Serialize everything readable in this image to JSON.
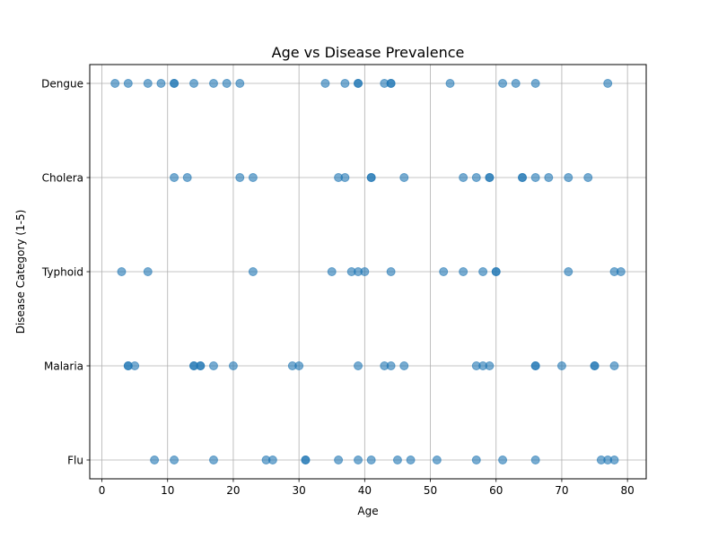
{
  "chart_data": {
    "type": "scatter",
    "title": "Age vs Disease Prevalence",
    "xlabel": "Age",
    "ylabel": "Disease Category (1-5)",
    "xlim": [
      -1.85,
      82.85
    ],
    "ylim": [
      0.8,
      5.2
    ],
    "xticks": [
      0,
      10,
      20,
      30,
      40,
      50,
      60,
      70,
      80
    ],
    "yticks": [
      1,
      2,
      3,
      4,
      5
    ],
    "ytick_labels": [
      "Flu",
      "Malaria",
      "Typhoid",
      "Cholera",
      "Dengue"
    ],
    "grid": true,
    "point_color": "#1f77b4",
    "point_opacity": 0.6,
    "points": [
      {
        "x": 2,
        "y": 5
      },
      {
        "x": 4,
        "y": 5
      },
      {
        "x": 7,
        "y": 5
      },
      {
        "x": 9,
        "y": 5
      },
      {
        "x": 11,
        "y": 5
      },
      {
        "x": 11,
        "y": 5
      },
      {
        "x": 14,
        "y": 5
      },
      {
        "x": 17,
        "y": 5
      },
      {
        "x": 19,
        "y": 5
      },
      {
        "x": 21,
        "y": 5
      },
      {
        "x": 34,
        "y": 5
      },
      {
        "x": 37,
        "y": 5
      },
      {
        "x": 39,
        "y": 5
      },
      {
        "x": 39,
        "y": 5
      },
      {
        "x": 43,
        "y": 5
      },
      {
        "x": 44,
        "y": 5
      },
      {
        "x": 44,
        "y": 5
      },
      {
        "x": 53,
        "y": 5
      },
      {
        "x": 61,
        "y": 5
      },
      {
        "x": 63,
        "y": 5
      },
      {
        "x": 66,
        "y": 5
      },
      {
        "x": 77,
        "y": 5
      },
      {
        "x": 11,
        "y": 4
      },
      {
        "x": 13,
        "y": 4
      },
      {
        "x": 21,
        "y": 4
      },
      {
        "x": 23,
        "y": 4
      },
      {
        "x": 36,
        "y": 4
      },
      {
        "x": 37,
        "y": 4
      },
      {
        "x": 41,
        "y": 4
      },
      {
        "x": 41,
        "y": 4
      },
      {
        "x": 46,
        "y": 4
      },
      {
        "x": 55,
        "y": 4
      },
      {
        "x": 57,
        "y": 4
      },
      {
        "x": 59,
        "y": 4
      },
      {
        "x": 59,
        "y": 4
      },
      {
        "x": 64,
        "y": 4
      },
      {
        "x": 64,
        "y": 4
      },
      {
        "x": 66,
        "y": 4
      },
      {
        "x": 68,
        "y": 4
      },
      {
        "x": 71,
        "y": 4
      },
      {
        "x": 74,
        "y": 4
      },
      {
        "x": 3,
        "y": 3
      },
      {
        "x": 7,
        "y": 3
      },
      {
        "x": 23,
        "y": 3
      },
      {
        "x": 35,
        "y": 3
      },
      {
        "x": 38,
        "y": 3
      },
      {
        "x": 39,
        "y": 3
      },
      {
        "x": 40,
        "y": 3
      },
      {
        "x": 44,
        "y": 3
      },
      {
        "x": 52,
        "y": 3
      },
      {
        "x": 55,
        "y": 3
      },
      {
        "x": 58,
        "y": 3
      },
      {
        "x": 60,
        "y": 3
      },
      {
        "x": 60,
        "y": 3
      },
      {
        "x": 71,
        "y": 3
      },
      {
        "x": 78,
        "y": 3
      },
      {
        "x": 79,
        "y": 3
      },
      {
        "x": 4,
        "y": 2
      },
      {
        "x": 4,
        "y": 2
      },
      {
        "x": 5,
        "y": 2
      },
      {
        "x": 14,
        "y": 2
      },
      {
        "x": 14,
        "y": 2
      },
      {
        "x": 15,
        "y": 2
      },
      {
        "x": 15,
        "y": 2
      },
      {
        "x": 17,
        "y": 2
      },
      {
        "x": 20,
        "y": 2
      },
      {
        "x": 29,
        "y": 2
      },
      {
        "x": 30,
        "y": 2
      },
      {
        "x": 39,
        "y": 2
      },
      {
        "x": 43,
        "y": 2
      },
      {
        "x": 44,
        "y": 2
      },
      {
        "x": 46,
        "y": 2
      },
      {
        "x": 57,
        "y": 2
      },
      {
        "x": 58,
        "y": 2
      },
      {
        "x": 59,
        "y": 2
      },
      {
        "x": 66,
        "y": 2
      },
      {
        "x": 66,
        "y": 2
      },
      {
        "x": 70,
        "y": 2
      },
      {
        "x": 75,
        "y": 2
      },
      {
        "x": 75,
        "y": 2
      },
      {
        "x": 78,
        "y": 2
      },
      {
        "x": 8,
        "y": 1
      },
      {
        "x": 11,
        "y": 1
      },
      {
        "x": 17,
        "y": 1
      },
      {
        "x": 25,
        "y": 1
      },
      {
        "x": 26,
        "y": 1
      },
      {
        "x": 31,
        "y": 1
      },
      {
        "x": 31,
        "y": 1
      },
      {
        "x": 36,
        "y": 1
      },
      {
        "x": 39,
        "y": 1
      },
      {
        "x": 41,
        "y": 1
      },
      {
        "x": 45,
        "y": 1
      },
      {
        "x": 47,
        "y": 1
      },
      {
        "x": 51,
        "y": 1
      },
      {
        "x": 57,
        "y": 1
      },
      {
        "x": 61,
        "y": 1
      },
      {
        "x": 66,
        "y": 1
      },
      {
        "x": 76,
        "y": 1
      },
      {
        "x": 77,
        "y": 1
      },
      {
        "x": 78,
        "y": 1
      }
    ]
  }
}
